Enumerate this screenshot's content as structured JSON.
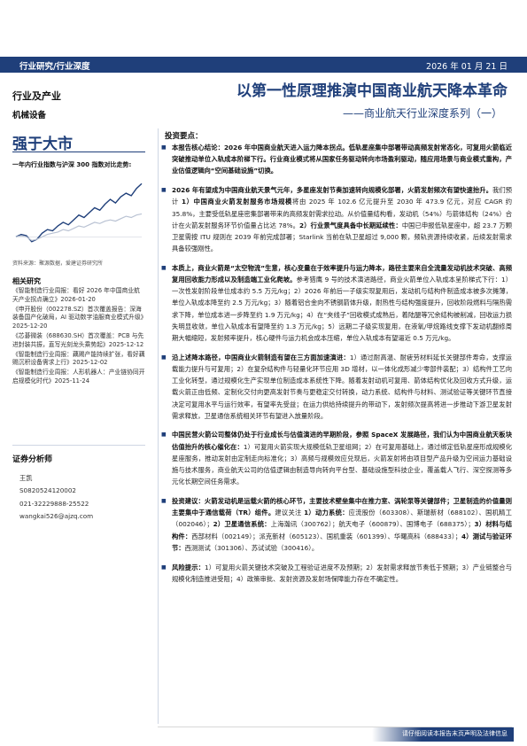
{
  "header": {
    "category": "行业研究/行业深度",
    "date": "2026 年 01 月 21 日"
  },
  "left": {
    "industry_heading": "行业及产业",
    "industry_name": "机械设备",
    "rating": "强于大市",
    "chart_title": "一年内行业指数与沪深 300 指数对比走势:",
    "chart_source": "资料来源：聚源数据，爱建证券研究所",
    "related_heading": "相关研究",
    "related": [
      "《智能制造行业周报：看好 2026 年中国商业航天产业拐点确立》2026-01-20",
      "《申开股份（002278.SZ）首次覆盖报告：深海装备国产化破局，AI 驱动数字油服商业模式升级》2025-12-20",
      "《芯碁微装（688630.SH）首次覆盖：PCB 与先进封装共振，直写光刻龙头乘势起》2025-12-12",
      "《智能制造行业周报：藕赐产能持续扩张，看好藕赐沉积设备需求上行》2025-12-02",
      "《智能制造行业周报：人形机器人：产业链协同开启规模化时代》2025-11-24"
    ],
    "analyst_heading": "证券分析师",
    "analyst": [
      "王凯",
      "S0820524120002",
      "021-32229888-25522",
      "wangkai526@ajzq.com"
    ]
  },
  "main": {
    "title": "以第一性原理推演中国商业航天降本革命",
    "subtitle": "——商业航天行业深度系列（一）",
    "highlights_heading": "投资要点：",
    "sections": [
      [
        {
          "b": true,
          "t": "本报告核心结论：2026 年中国商业航天进入运力降本拐点。低轨星座集中部署带动高频发射常态化，可复用火箭临近突破推动单位入轨成本阶梯下行。行业商业模式将从国家任务驱动转向市场盈利驱动，随应用场景与商业模式重构，产业估值逻辑向“空间基础设施”切换。"
        }
      ],
      [
        {
          "b": true,
          "t": "2026 年有望成为中国商业航天景气元年，多星座发射节奏加速转向规模化部署，火箭发射频次有望快速抬升。"
        },
        {
          "b": false,
          "t": "我们预计 "
        },
        {
          "b": true,
          "t": "1）中国商业火箭发射服务市场规模"
        },
        {
          "b": false,
          "t": "将由 2025 年 102.6 亿元提升至 2030 年 473.9 亿元，对应 CAGR 约 35.8%，主要受低轨星座密集部署带来的高频发射需求拉动。从价值量结构看，发动机（54%）与箭体结构（24%）合计在火箭发射服务环节价值量占比达 78%。"
        },
        {
          "b": true,
          "t": "2）行业景气度具备中长期延续性："
        },
        {
          "b": false,
          "t": "中国已申报低轨星座中，超 23.7 万颗卫星需按 ITU 规则在 2039 年前完成部署；Starlink 当前在轨卫星超过 9,000 颗，频轨资源持续收紧，后续发射需求具备较强刚性。"
        }
      ],
      [
        {
          "b": true,
          "t": "本质上，商业火箭是“太空物流”生意，核心变量在于效率提升与运力降本，路径主要来自全流量发动机技术突破、高频复用回收能力形成以及制造端工业化爬坡。"
        },
        {
          "b": false,
          "t": "参考猎鹰 9 号的技术演进路径，商业火箭单位入轨成本呈阶梯式下行：1）一次性发射阶段单位成本约 5.5 万元/kg；2）2026 年前后一子级实现复用后，发动机与结构件制造成本被多次摊薄，单位入轨成本降至约 2.5 万元/kg；3）随着铝合金向不锈钢箭体升级，耐热性与结构强度提升，回收阶段燃料与隔热需求下降，单位成本进一步降至约 1.9 万元/kg；4）在“夹线子”回收模式成熟后，着陆腿等冗余结构被削减，回收运力损失明显收敛，单位入轨成本有望降至约 1.3 万元/kg；5）远期二子级实现复用，在液氧/甲烷路线支撑下发动机翻修周期大幅缩短，发射频率提升，核心硬件与运力机会成本压缩，单位入轨成本有望逼近 0.5 万元/kg。"
        }
      ],
      [
        {
          "b": true,
          "t": "沿上述降本路径，中国商业火箭制造有望在三方面加速演进："
        },
        {
          "b": false,
          "t": "1）通过耐高温、耐疲劳材料延长关键部件寿命，支撑运载能力提升与可复用；2）在复杂结构件与轻量化环节应用 3D 增材，以一体化成形减少零部件装配；3）结构件工艺向工业化转型，通过规模化生产实现单位制造成本系统性下降。随着发射动机可复用、箭体结构优化及回收方式升级，运载火箭正由低频、定制化交付向更高发射节奏与更稳定交付转换，动力系统、结构件与材料、测试验证等关键环节直接决定可复用水平与运行效率，有望率先受益；在运力供给持续提升的带动下，发射频次提高将进一步推动下游卫星发射需求释放，卫星通信系统相关环节有望进入放量阶段。"
        }
      ],
      [
        {
          "b": true,
          "t": "中国民营火箭公司整体仍处于行业成长与估值演进的早期阶段，参照 SpaceX 发展路径，我们认为中国商业航天板块估值抬升的核心催化在："
        },
        {
          "b": false,
          "t": "1）可复用火箭实现大规模低轨卫星组网；2）在可复用基础上，通过绑定低轨星座形成规模化星座服务，推动发射由定制走向标准化；3）高频与规模效应兑现后，火箭发射将由项目型产品升级为空间运力基础设施与技术服务，商业航天公司的估值逻辑由制造导向转向平台型、基础设施型科技企业，覆盖载人飞行、深空探测等多元化长期空间任务需求。"
        }
      ],
      [
        {
          "b": true,
          "t": "投资建议：火箭发动机是运载火箭的核心环节，主要技术壁垒集中在推力室、涡轮泵等关键部件；卫星制造的价值量则主要集中于通信载荷（TR）组件。"
        },
        {
          "b": false,
          "t": "建议关注 "
        },
        {
          "b": true,
          "t": "1）动力系统："
        },
        {
          "b": false,
          "t": "应流股份（603308）、斯瑞新材（688102）、国机精工（002046）；"
        },
        {
          "b": true,
          "t": "2）卫星通信系统："
        },
        {
          "b": false,
          "t": "上海瀚讯（300762）；航天电子（600879）、国博电子（688375）；"
        },
        {
          "b": true,
          "t": "3）材料与结构件："
        },
        {
          "b": false,
          "t": "西部材料（002149）；派克新材（605123）、国机重装（601399）、华曙高科（688433）；"
        },
        {
          "b": true,
          "t": "4）测试与验证环节："
        },
        {
          "b": false,
          "t": "西测测试（301306）、苏试试验（300416）。"
        }
      ],
      [
        {
          "b": true,
          "t": "风险提示："
        },
        {
          "b": false,
          "t": "1）可复用火箭关键技术突破及工程验证进度不及预期；2）发射需求释放节奏低于预期；3）产业链整合与规模化制造推进受阻；4）政策审批、发射资源及发射场保障能力存在不确定性。"
        }
      ]
    ]
  },
  "footer": {
    "text": "请仔细阅读本报告末页声明及法律信息"
  },
  "colors": {
    "brand": "#1f3f7a",
    "industry_line": "#1f3f7a",
    "index_line": "#b9c2d3"
  },
  "chart_data": {
    "type": "line",
    "title": "一年内行业指数与沪深 300 指数对比走势:",
    "x": [
      0,
      1,
      2,
      3,
      4,
      5,
      6,
      7,
      8,
      9,
      10,
      11,
      12,
      13,
      14,
      15,
      16,
      17,
      18,
      19,
      20,
      21,
      22,
      23,
      24
    ],
    "series": [
      {
        "values": [
          0,
          2,
          1,
          -4,
          -2,
          3,
          6,
          5,
          9,
          12,
          10,
          14,
          18,
          16,
          20,
          24,
          22,
          27,
          31,
          28,
          33,
          36,
          34,
          40,
          44
        ]
      },
      {
        "values": [
          0,
          1,
          0,
          -3,
          -2,
          0,
          2,
          3,
          4,
          6,
          5,
          7,
          9,
          8,
          10,
          12,
          11,
          13,
          14,
          13,
          15,
          17,
          16,
          18,
          19
        ]
      }
    ],
    "ylim": [
      -10,
      50
    ],
    "grid": false,
    "legend": "none"
  }
}
